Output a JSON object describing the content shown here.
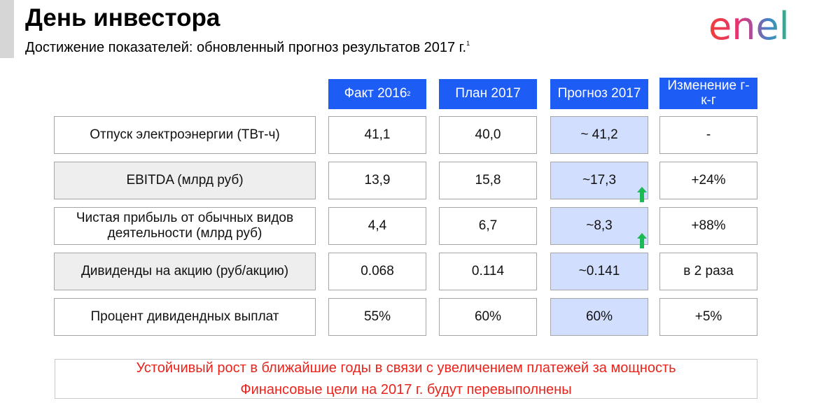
{
  "header": {
    "title": "День инвестора",
    "subtitle": "Достижение показателей: обновленный прогноз результатов 2017 г.",
    "subtitle_footnote": "1",
    "logo_text": "enel"
  },
  "table": {
    "columns": [
      {
        "label": "Факт 2016",
        "footnote": "2"
      },
      {
        "label": "План 2017",
        "footnote": ""
      },
      {
        "label": "Прогноз 2017",
        "footnote": ""
      },
      {
        "label": "Изменение г-к-г",
        "footnote": ""
      }
    ],
    "rows": [
      {
        "label": "Отпуск электроэнергии (ТВт-ч)",
        "fact_2016": "41,1",
        "plan_2017": "40,0",
        "forecast_2017": "~ 41,2",
        "change_yoy": "-",
        "up_arrow": false
      },
      {
        "label": "EBITDA (млрд руб)",
        "fact_2016": "13,9",
        "plan_2017": "15,8",
        "forecast_2017": "~17,3",
        "change_yoy": "+24%",
        "up_arrow": true
      },
      {
        "label": "Чистая прибыль от обычных видов деятельности (млрд руб)",
        "fact_2016": "4,4",
        "plan_2017": "6,7",
        "forecast_2017": "~8,3",
        "change_yoy": "+88%",
        "up_arrow": true
      },
      {
        "label": "Дивиденды на акцию (руб/акцию)",
        "fact_2016": "0.068",
        "plan_2017": "0.114",
        "forecast_2017": "~0.141",
        "change_yoy": "в 2 раза",
        "up_arrow": false
      },
      {
        "label": "Процент дивидендных выплат",
        "fact_2016": "55%",
        "plan_2017": "60%",
        "forecast_2017": "60%",
        "change_yoy": "+5%",
        "up_arrow": false
      }
    ]
  },
  "footer": {
    "line1": "Устойчивый рост в ближайшие годы в связи с увеличением платежей за мощность",
    "line2": "Финансовые цели на 2017 г. будут перевыполнены"
  },
  "colors": {
    "header_fill": "#1d5cf5",
    "forecast_fill": "#d2defd",
    "footer_text": "#e8241c",
    "arrow": "#1db954"
  }
}
